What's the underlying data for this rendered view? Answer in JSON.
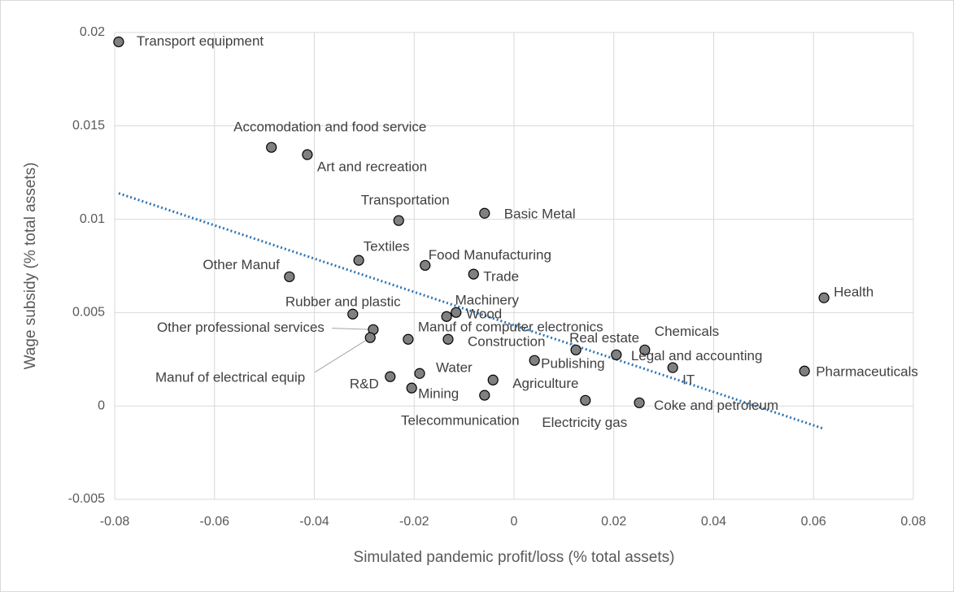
{
  "chart_data": {
    "type": "scatter",
    "x_label": "Simulated pandemic profit/loss (% total assets)",
    "y_label": "Wage subsidy (% total assets)",
    "point_labels": [
      "Transport equipment",
      "Accomodation and food service",
      "Art and recreation",
      "Transportation",
      "Basic Metal",
      "Textiles",
      "Food Manufacturing",
      "Trade",
      "Other Manuf",
      "Health",
      "Rubber and plastic",
      "Machinery",
      "Wood",
      "Other professional services",
      "Manuf of electrical equip",
      "Manuf of computer electronics",
      "Construction",
      "Real estate",
      "Chemicals",
      "Legal and accounting",
      "Publishing",
      "IT",
      "Pharmaceuticals",
      "R&D",
      "Water",
      "Agriculture",
      "Mining",
      "Telecommunication",
      "Electricity gas",
      "Coke and petroleum"
    ],
    "x": [
      -0.0792,
      -0.0486,
      -0.0414,
      -0.0231,
      -0.0059,
      -0.0311,
      -0.0178,
      -0.0081,
      -0.045,
      0.0621,
      -0.0323,
      -0.0116,
      -0.0135,
      -0.0282,
      -0.0288,
      -0.0212,
      -0.0132,
      0.0124,
      0.0262,
      0.0205,
      0.0041,
      0.0318,
      0.0582,
      -0.0248,
      -0.0189,
      -0.0042,
      -0.0205,
      -0.0059,
      0.0143,
      0.0251
    ],
    "values": [
      0.0195,
      0.01385,
      0.01346,
      0.00993,
      0.01032,
      0.0078,
      0.00753,
      0.00706,
      0.00692,
      0.00579,
      0.00492,
      0.00501,
      0.00479,
      0.00409,
      0.00366,
      0.00357,
      0.00357,
      0.003,
      0.003,
      0.00274,
      0.00244,
      0.00205,
      0.00187,
      0.00157,
      0.00174,
      0.00139,
      0.00096,
      0.00057,
      0.0003,
      0.00017
    ],
    "color": "#808080",
    "trendline": true,
    "trendline_color": "#2e75b6",
    "xlim": [
      -0.08,
      0.08
    ],
    "xticks": [
      -0.08,
      -0.06,
      -0.04,
      -0.02,
      0,
      0.02,
      0.04,
      0.06,
      0.08
    ],
    "ylim": [
      -0.005,
      0.02
    ],
    "yticks": [
      -0.005,
      0,
      0.005,
      0.01,
      0.015,
      0.02
    ],
    "grid": true
  }
}
